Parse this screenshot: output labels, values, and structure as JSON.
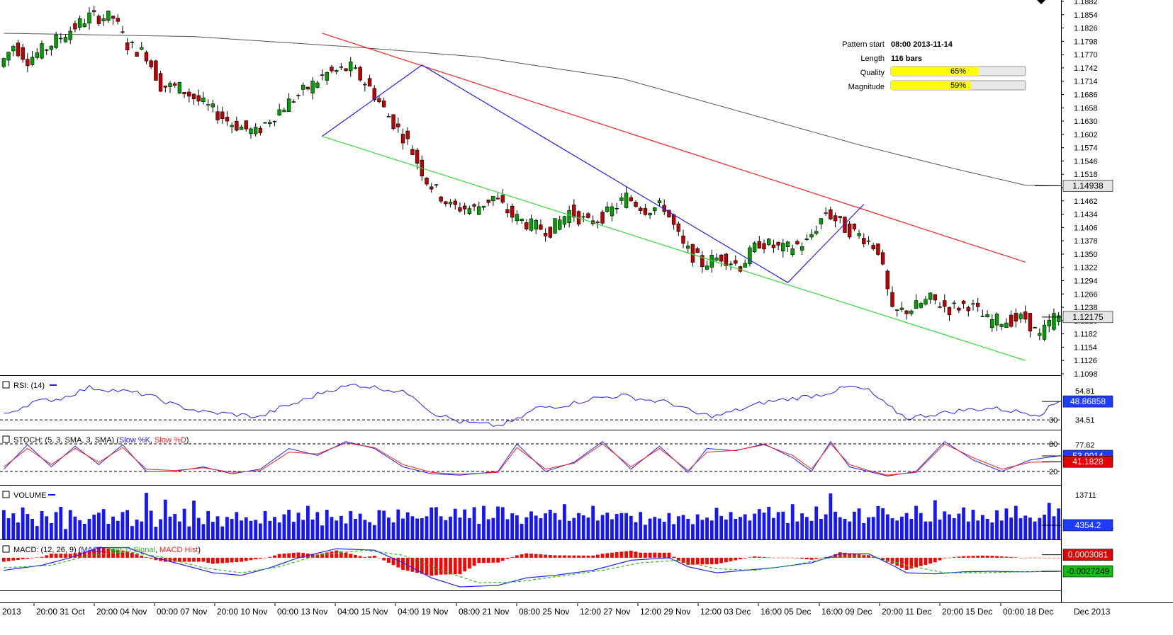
{
  "chart_data": {
    "type": "candlestick",
    "symbol_note": "",
    "main_y_ticks": [
      "1.1882",
      "1.1854",
      "1.1826",
      "1.1798",
      "1.1770",
      "1.1742",
      "1.1714",
      "1.1686",
      "1.1658",
      "1.1630",
      "1.1602",
      "1.1574",
      "1.1546",
      "1.1518",
      "1.1490",
      "1.1462",
      "1.1434",
      "1.1406",
      "1.1378",
      "1.1350",
      "1.1322",
      "1.1294",
      "1.1266",
      "1.1238",
      "1.1210",
      "1.1182",
      "1.1154",
      "1.1126",
      "1.1098"
    ],
    "ylim": [
      1.1098,
      1.1882
    ],
    "x_ticks": [
      "2013",
      "20:00 31 Oct",
      "20:00 04 Nov",
      "00:00 07 Nov",
      "20:00 10 Nov",
      "00:00 13 Nov",
      "04:00 15 Nov",
      "04:00 19 Nov",
      "08:00 21 Nov",
      "08:00 25 Nov",
      "12:00 27 Nov",
      "12:00 29 Nov",
      "12:00 03 Dec",
      "16:00 05 Dec",
      "16:00 09 Dec",
      "20:00 11 Dec",
      "20:00 15 Dec",
      "00:00 18 Dec",
      "Dec 2013"
    ],
    "price_path": [
      [
        0,
        1.1745
      ],
      [
        3,
        1.179
      ],
      [
        6,
        1.176
      ],
      [
        10,
        1.1785
      ],
      [
        14,
        1.1815
      ],
      [
        19,
        1.185
      ],
      [
        24,
        1.1848
      ],
      [
        27,
        1.179
      ],
      [
        31,
        1.177
      ],
      [
        34,
        1.1705
      ],
      [
        38,
        1.17
      ],
      [
        43,
        1.1665
      ],
      [
        49,
        1.1625
      ],
      [
        54,
        1.1605
      ],
      [
        57,
        1.1635
      ],
      [
        61,
        1.167
      ],
      [
        65,
        1.17
      ],
      [
        69,
        1.173
      ],
      [
        74,
        1.1742
      ],
      [
        78,
        1.17
      ],
      [
        82,
        1.164
      ],
      [
        86,
        1.1585
      ],
      [
        90,
        1.1505
      ],
      [
        95,
        1.145
      ],
      [
        100,
        1.1445
      ],
      [
        104,
        1.147
      ],
      [
        108,
        1.143
      ],
      [
        112,
        1.141
      ],
      [
        116,
        1.14
      ],
      [
        120,
        1.144
      ],
      [
        124,
        1.1415
      ],
      [
        128,
        1.1435
      ],
      [
        132,
        1.147
      ],
      [
        136,
        1.1445
      ],
      [
        140,
        1.145
      ],
      [
        144,
        1.1365
      ],
      [
        148,
        1.133
      ],
      [
        152,
        1.1345
      ],
      [
        156,
        1.1325
      ],
      [
        160,
        1.1375
      ],
      [
        165,
        1.136
      ],
      [
        170,
        1.1375
      ],
      [
        174,
        1.144
      ],
      [
        178,
        1.1405
      ],
      [
        182,
        1.1385
      ],
      [
        185,
        1.136
      ],
      [
        188,
        1.1225
      ],
      [
        192,
        1.1235
      ],
      [
        196,
        1.1255
      ],
      [
        200,
        1.1235
      ],
      [
        204,
        1.1245
      ],
      [
        208,
        1.121
      ],
      [
        212,
        1.121
      ],
      [
        216,
        1.1215
      ],
      [
        219,
        1.1175
      ],
      [
        222,
        1.1218
      ]
    ],
    "sma_path": [
      [
        0,
        1.1815
      ],
      [
        40,
        1.1808
      ],
      [
        75,
        1.1785
      ],
      [
        100,
        1.1765
      ],
      [
        130,
        1.172
      ],
      [
        155,
        1.165
      ],
      [
        180,
        1.158
      ],
      [
        200,
        1.153
      ],
      [
        215,
        1.1495
      ],
      [
        222,
        1.1494
      ]
    ],
    "channel": {
      "resistance": [
        [
          67,
          1.1815
        ],
        [
          215,
          1.1333
        ]
      ],
      "support": [
        [
          67,
          1.1598
        ],
        [
          215,
          1.1126
        ]
      ],
      "zigzag": [
        [
          67,
          1.1598
        ],
        [
          88,
          1.1748
        ],
        [
          165,
          1.129
        ],
        [
          181,
          1.1455
        ]
      ]
    },
    "pattern_info": {
      "start_label": "Pattern start",
      "start_value": "08:00 2013-11-14",
      "length_label": "Length",
      "length_value": "116 bars",
      "quality_label": "Quality",
      "quality_value": 65,
      "quality_text": "65%",
      "magnitude_label": "Magnitude",
      "magnitude_value": 59,
      "magnitude_text": "59%"
    },
    "price_labels": {
      "sma_value": "1.14938",
      "last_price": "1.12175"
    },
    "rsi": {
      "label": "RSI: (14)",
      "levels": [
        "30"
      ],
      "ticks": [
        "54.81",
        "34.51"
      ],
      "current": "48.86858",
      "ylim": [
        20,
        75
      ],
      "path": [
        [
          0,
          35
        ],
        [
          6,
          48
        ],
        [
          12,
          52
        ],
        [
          18,
          63
        ],
        [
          24,
          60
        ],
        [
          30,
          56
        ],
        [
          36,
          45
        ],
        [
          42,
          38
        ],
        [
          48,
          36
        ],
        [
          54,
          33
        ],
        [
          58,
          42
        ],
        [
          62,
          48
        ],
        [
          68,
          60
        ],
        [
          74,
          66
        ],
        [
          80,
          62
        ],
        [
          86,
          56
        ],
        [
          90,
          38
        ],
        [
          96,
          28
        ],
        [
          104,
          24
        ],
        [
          108,
          30
        ],
        [
          112,
          42
        ],
        [
          118,
          45
        ],
        [
          124,
          52
        ],
        [
          130,
          55
        ],
        [
          136,
          50
        ],
        [
          140,
          48
        ],
        [
          146,
          36
        ],
        [
          150,
          34
        ],
        [
          156,
          42
        ],
        [
          160,
          48
        ],
        [
          166,
          52
        ],
        [
          172,
          56
        ],
        [
          178,
          64
        ],
        [
          182,
          60
        ],
        [
          186,
          44
        ],
        [
          190,
          32
        ],
        [
          196,
          36
        ],
        [
          202,
          40
        ],
        [
          208,
          42
        ],
        [
          214,
          38
        ],
        [
          218,
          36
        ],
        [
          222,
          49
        ]
      ]
    },
    "stoch": {
      "label": "STOCH: (5, 3, SMA, 3, SMA)",
      "k_label": "Slow %K",
      "d_label": "Slow %D",
      "levels": [
        "80",
        "20"
      ],
      "ticks": [
        "77.62"
      ],
      "current_k": "53.9014",
      "current_d": "41.1828",
      "ylim": [
        0,
        100
      ],
      "k_path": [
        [
          0,
          25
        ],
        [
          5,
          78
        ],
        [
          10,
          30
        ],
        [
          15,
          75
        ],
        [
          20,
          35
        ],
        [
          25,
          78
        ],
        [
          30,
          20
        ],
        [
          36,
          20
        ],
        [
          42,
          30
        ],
        [
          48,
          15
        ],
        [
          54,
          25
        ],
        [
          60,
          70
        ],
        [
          66,
          55
        ],
        [
          72,
          85
        ],
        [
          78,
          70
        ],
        [
          84,
          30
        ],
        [
          90,
          15
        ],
        [
          96,
          12
        ],
        [
          104,
          20
        ],
        [
          108,
          80
        ],
        [
          114,
          20
        ],
        [
          120,
          40
        ],
        [
          126,
          85
        ],
        [
          132,
          25
        ],
        [
          138,
          75
        ],
        [
          144,
          18
        ],
        [
          148,
          70
        ],
        [
          154,
          65
        ],
        [
          160,
          80
        ],
        [
          166,
          50
        ],
        [
          170,
          20
        ],
        [
          174,
          85
        ],
        [
          178,
          30
        ],
        [
          182,
          20
        ],
        [
          186,
          10
        ],
        [
          192,
          20
        ],
        [
          198,
          85
        ],
        [
          204,
          45
        ],
        [
          210,
          20
        ],
        [
          216,
          45
        ],
        [
          222,
          54
        ]
      ],
      "d_path": [
        [
          0,
          30
        ],
        [
          5,
          70
        ],
        [
          10,
          35
        ],
        [
          15,
          70
        ],
        [
          20,
          40
        ],
        [
          25,
          72
        ],
        [
          30,
          25
        ],
        [
          36,
          22
        ],
        [
          42,
          28
        ],
        [
          48,
          18
        ],
        [
          54,
          22
        ],
        [
          60,
          62
        ],
        [
          66,
          58
        ],
        [
          72,
          82
        ],
        [
          78,
          72
        ],
        [
          84,
          35
        ],
        [
          90,
          18
        ],
        [
          96,
          14
        ],
        [
          104,
          18
        ],
        [
          108,
          72
        ],
        [
          114,
          25
        ],
        [
          120,
          38
        ],
        [
          126,
          80
        ],
        [
          132,
          30
        ],
        [
          138,
          70
        ],
        [
          144,
          22
        ],
        [
          148,
          62
        ],
        [
          154,
          66
        ],
        [
          160,
          78
        ],
        [
          166,
          55
        ],
        [
          170,
          25
        ],
        [
          174,
          80
        ],
        [
          178,
          35
        ],
        [
          182,
          22
        ],
        [
          186,
          12
        ],
        [
          192,
          18
        ],
        [
          198,
          80
        ],
        [
          204,
          50
        ],
        [
          210,
          25
        ],
        [
          216,
          40
        ],
        [
          222,
          41
        ]
      ]
    },
    "volume": {
      "label": "VOLUME",
      "ticks": [
        "13711"
      ],
      "current": "4354.2",
      "ylim": [
        0,
        16500
      ],
      "values": [
        9000,
        6500,
        8000,
        5200,
        9800,
        7800,
        6300,
        4100,
        8700,
        7100,
        5000,
        8400,
        10000,
        3200,
        9000,
        7000,
        5900,
        4800,
        6300,
        7600,
        8200,
        9300,
        4800,
        7000,
        5700,
        8400,
        9000,
        4100,
        6100,
        5500,
        14300,
        8800,
        3900,
        6200,
        12200,
        7000,
        7800,
        5500,
        9400,
        4000,
        11900,
        6600,
        4700,
        8700,
        5400,
        7100,
        4000,
        6900,
        6300,
        8400,
        5800,
        6800,
        5700,
        6000,
        4900,
        8700,
        5700,
        6900,
        5200,
        7700,
        9100,
        5400,
        8200,
        6000,
        10300,
        6100,
        8400,
        4300,
        9100,
        6900,
        5800,
        7200,
        4900,
        8700,
        6300,
        7900,
        6000,
        5300,
        4400,
        9000,
        8800,
        6700,
        5200,
        9200,
        6400,
        8300,
        7100,
        6400,
        6500,
        7100,
        9800,
        9900,
        7100,
        5900,
        7000,
        9400,
        6700,
        9200,
        6500,
        9900,
        4800,
        10300,
        6200,
        6600,
        10100,
        9900,
        6200,
        8000,
        7400,
        4800,
        6800,
        8600,
        7300,
        6500,
        8000,
        9100,
        8100,
        6000,
        10800,
        5700,
        6600,
        8100,
        7400,
        6700,
        10300,
        5800,
        7500,
        8200,
        6200,
        7800,
        8100,
        8100,
        7200,
        5300,
        8400,
        4500,
        6400,
        6900,
        6400,
        5400,
        8100,
        4700,
        7100,
        7500,
        6300,
        4700,
        7700,
        6000,
        6700,
        5800,
        9700,
        7200,
        6100,
        8400,
        6300,
        6900,
        7700,
        5800,
        7900,
        9300,
        8200,
        10000,
        6600,
        8400,
        8500,
        5000,
        10800,
        5500,
        8000,
        6900,
        5700,
        10100,
        6300,
        7700,
        14100,
        8500,
        6800,
        6300,
        5500,
        8500,
        9500,
        5000,
        6800,
        6900,
        10200,
        9600,
        7700,
        6500,
        5800,
        7000,
        8100,
        6300,
        10300,
        8100,
        5500,
        5500,
        12000,
        6100,
        8600,
        7700,
        6500,
        7900,
        9800,
        5500,
        9100,
        5800,
        7500,
        6300,
        5200,
        8900,
        5800,
        9500,
        6700,
        10300,
        6500,
        7300,
        6700,
        5500,
        6600,
        7600,
        11200,
        7100,
        9500,
        8000,
        6800,
        6000,
        5800
      ]
    },
    "macd": {
      "label": "MACD: (12, 26, 9)",
      "main_label": "MACD",
      "signal_label": "MACD Signal",
      "hist_label": "MACD Hist",
      "hist_value": "0.0003081",
      "current": "-0.0027249",
      "ylim": [
        -0.0065,
        0.0035
      ],
      "macd_path": [
        [
          0,
          -0.0025
        ],
        [
          8,
          -0.0015
        ],
        [
          14,
          0.0
        ],
        [
          20,
          0.002
        ],
        [
          26,
          0.002
        ],
        [
          32,
          0.0
        ],
        [
          38,
          -0.0015
        ],
        [
          44,
          -0.003
        ],
        [
          50,
          -0.0035
        ],
        [
          56,
          -0.002
        ],
        [
          62,
          0.0
        ],
        [
          70,
          0.0018
        ],
        [
          78,
          0.0015
        ],
        [
          84,
          -0.001
        ],
        [
          90,
          -0.004
        ],
        [
          96,
          -0.0058
        ],
        [
          104,
          -0.0055
        ],
        [
          110,
          -0.004
        ],
        [
          116,
          -0.0035
        ],
        [
          124,
          -0.0025
        ],
        [
          132,
          -0.0005
        ],
        [
          140,
          0.0
        ],
        [
          144,
          -0.0018
        ],
        [
          150,
          -0.003
        ],
        [
          156,
          -0.0025
        ],
        [
          162,
          -0.002
        ],
        [
          170,
          -0.001
        ],
        [
          176,
          0.0008
        ],
        [
          182,
          0.0008
        ],
        [
          186,
          -0.001
        ],
        [
          190,
          -0.003
        ],
        [
          196,
          -0.0032
        ],
        [
          202,
          -0.0028
        ],
        [
          208,
          -0.0027
        ],
        [
          214,
          -0.0028
        ],
        [
          222,
          -0.0027
        ]
      ],
      "signal_path": [
        [
          0,
          -0.002
        ],
        [
          10,
          -0.0015
        ],
        [
          18,
          0.0005
        ],
        [
          26,
          0.0012
        ],
        [
          34,
          0.0
        ],
        [
          42,
          -0.002
        ],
        [
          50,
          -0.003
        ],
        [
          58,
          -0.0018
        ],
        [
          66,
          0.0005
        ],
        [
          76,
          0.0015
        ],
        [
          84,
          0.0005
        ],
        [
          92,
          -0.0025
        ],
        [
          100,
          -0.005
        ],
        [
          108,
          -0.0048
        ],
        [
          116,
          -0.0038
        ],
        [
          126,
          -0.0025
        ],
        [
          134,
          -0.001
        ],
        [
          142,
          -0.0005
        ],
        [
          150,
          -0.0022
        ],
        [
          158,
          -0.0025
        ],
        [
          166,
          -0.0015
        ],
        [
          174,
          0.0
        ],
        [
          182,
          0.0005
        ],
        [
          190,
          -0.0015
        ],
        [
          198,
          -0.003
        ],
        [
          206,
          -0.003
        ],
        [
          214,
          -0.0028
        ],
        [
          222,
          -0.0027
        ]
      ]
    }
  },
  "colors": {
    "bull": "#00a000",
    "bear": "#c00000",
    "sma": "#555555",
    "resistance": "#ff2020",
    "support": "#33dd33",
    "zigzag": "#2020ff",
    "rsi": "#2020ff",
    "volume": "#1515ff",
    "label_bg_gray": "#e6e6e6",
    "label_bg_blue": "#1e3cff",
    "label_bg_red": "#e00000",
    "label_bg_green": "#10c010",
    "quality_fill": "#ffff00"
  }
}
